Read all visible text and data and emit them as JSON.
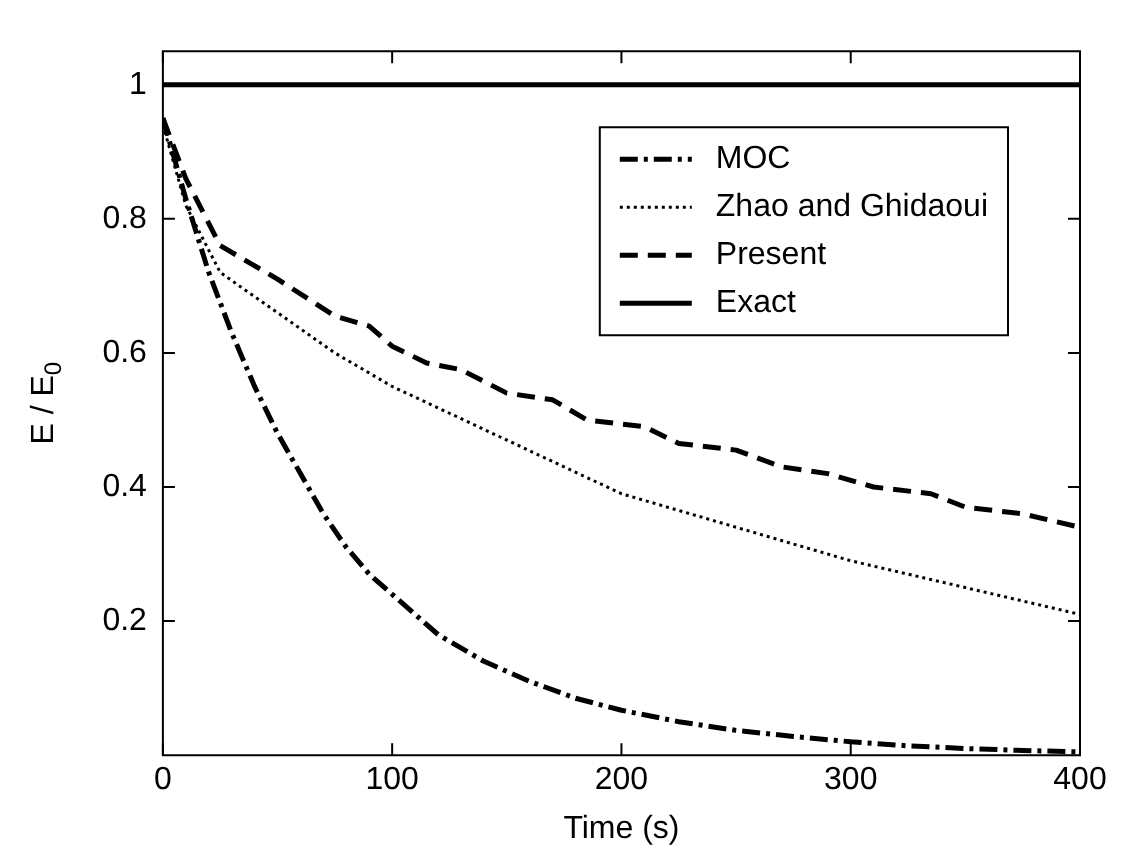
{
  "chart_data": {
    "type": "line",
    "xlabel": "Time (s)",
    "ylabel": "E / E$_{0}$",
    "xlim": [
      0,
      400
    ],
    "xticks": [
      0,
      100,
      200,
      300,
      400
    ],
    "ylim": [
      0,
      1.05
    ],
    "yticks": [
      0.2,
      0.4,
      0.6,
      0.8,
      1
    ],
    "legend": "top right",
    "grid": false,
    "marker": "none",
    "series": [
      {
        "name": "MOC",
        "color": "#000000",
        "line_style": "dashdot",
        "x": [
          0,
          10,
          20,
          30,
          40,
          50,
          60,
          70,
          80,
          90,
          100,
          120,
          140,
          160,
          180,
          200,
          225,
          250,
          275,
          300,
          325,
          350,
          375,
          400
        ],
        "values": [
          0.95,
          0.83,
          0.72,
          0.63,
          0.55,
          0.48,
          0.42,
          0.36,
          0.31,
          0.27,
          0.24,
          0.18,
          0.14,
          0.11,
          0.085,
          0.067,
          0.05,
          0.037,
          0.028,
          0.02,
          0.014,
          0.01,
          0.007,
          0.005
        ]
      },
      {
        "name": "Zhao and Ghidaoui",
        "color": "#000000",
        "line_style": "dotted",
        "x": [
          0,
          10,
          25,
          50,
          75,
          100,
          125,
          150,
          175,
          200,
          250,
          300,
          350,
          400
        ],
        "values": [
          0.94,
          0.82,
          0.72,
          0.66,
          0.6,
          0.55,
          0.51,
          0.47,
          0.43,
          0.39,
          0.34,
          0.29,
          0.25,
          0.21
        ]
      },
      {
        "name": "Present",
        "color": "#000000",
        "line_style": "dashed",
        "x": [
          0,
          10,
          25,
          50,
          75,
          90,
          100,
          115,
          130,
          150,
          170,
          185,
          210,
          225,
          250,
          270,
          290,
          310,
          335,
          350,
          375,
          400
        ],
        "values": [
          0.95,
          0.86,
          0.76,
          0.71,
          0.655,
          0.64,
          0.61,
          0.585,
          0.575,
          0.54,
          0.53,
          0.5,
          0.49,
          0.465,
          0.455,
          0.43,
          0.42,
          0.4,
          0.39,
          0.37,
          0.36,
          0.34
        ]
      },
      {
        "name": "Exact",
        "color": "#000000",
        "line_style": "solid",
        "x": [
          0,
          400
        ],
        "values": [
          1,
          1
        ]
      }
    ]
  }
}
